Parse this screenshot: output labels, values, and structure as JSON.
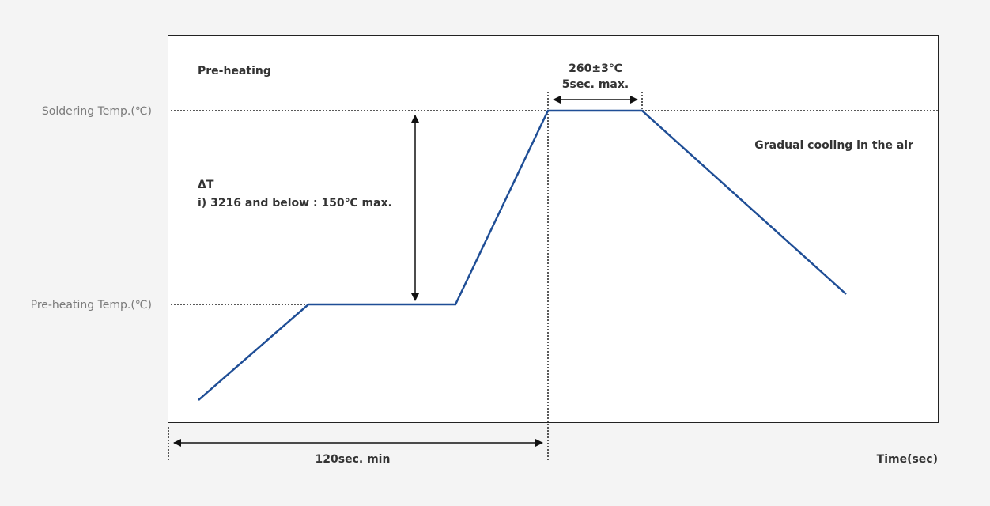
{
  "diagram": {
    "y_labels": {
      "soldering_temp": "Soldering Temp.(℃)",
      "preheating_temp": "Pre-heating Temp.(℃)"
    },
    "annotations": {
      "preheating": "Pre-heating",
      "peak_temp": "260±3℃",
      "peak_time": "5sec. max.",
      "delta_t_title": "ΔT",
      "delta_t_note": "i) 3216 and below : 150℃ max.",
      "cooling": "Gradual cooling in the air",
      "duration": "120sec. min"
    },
    "x_axis_label": "Time(sec)",
    "colors": {
      "profile_line": "#1f4e96",
      "background": "#f4f4f4",
      "plot_area": "#ffffff",
      "text_muted": "#7a7a7a",
      "text_strong": "#333333"
    }
  }
}
